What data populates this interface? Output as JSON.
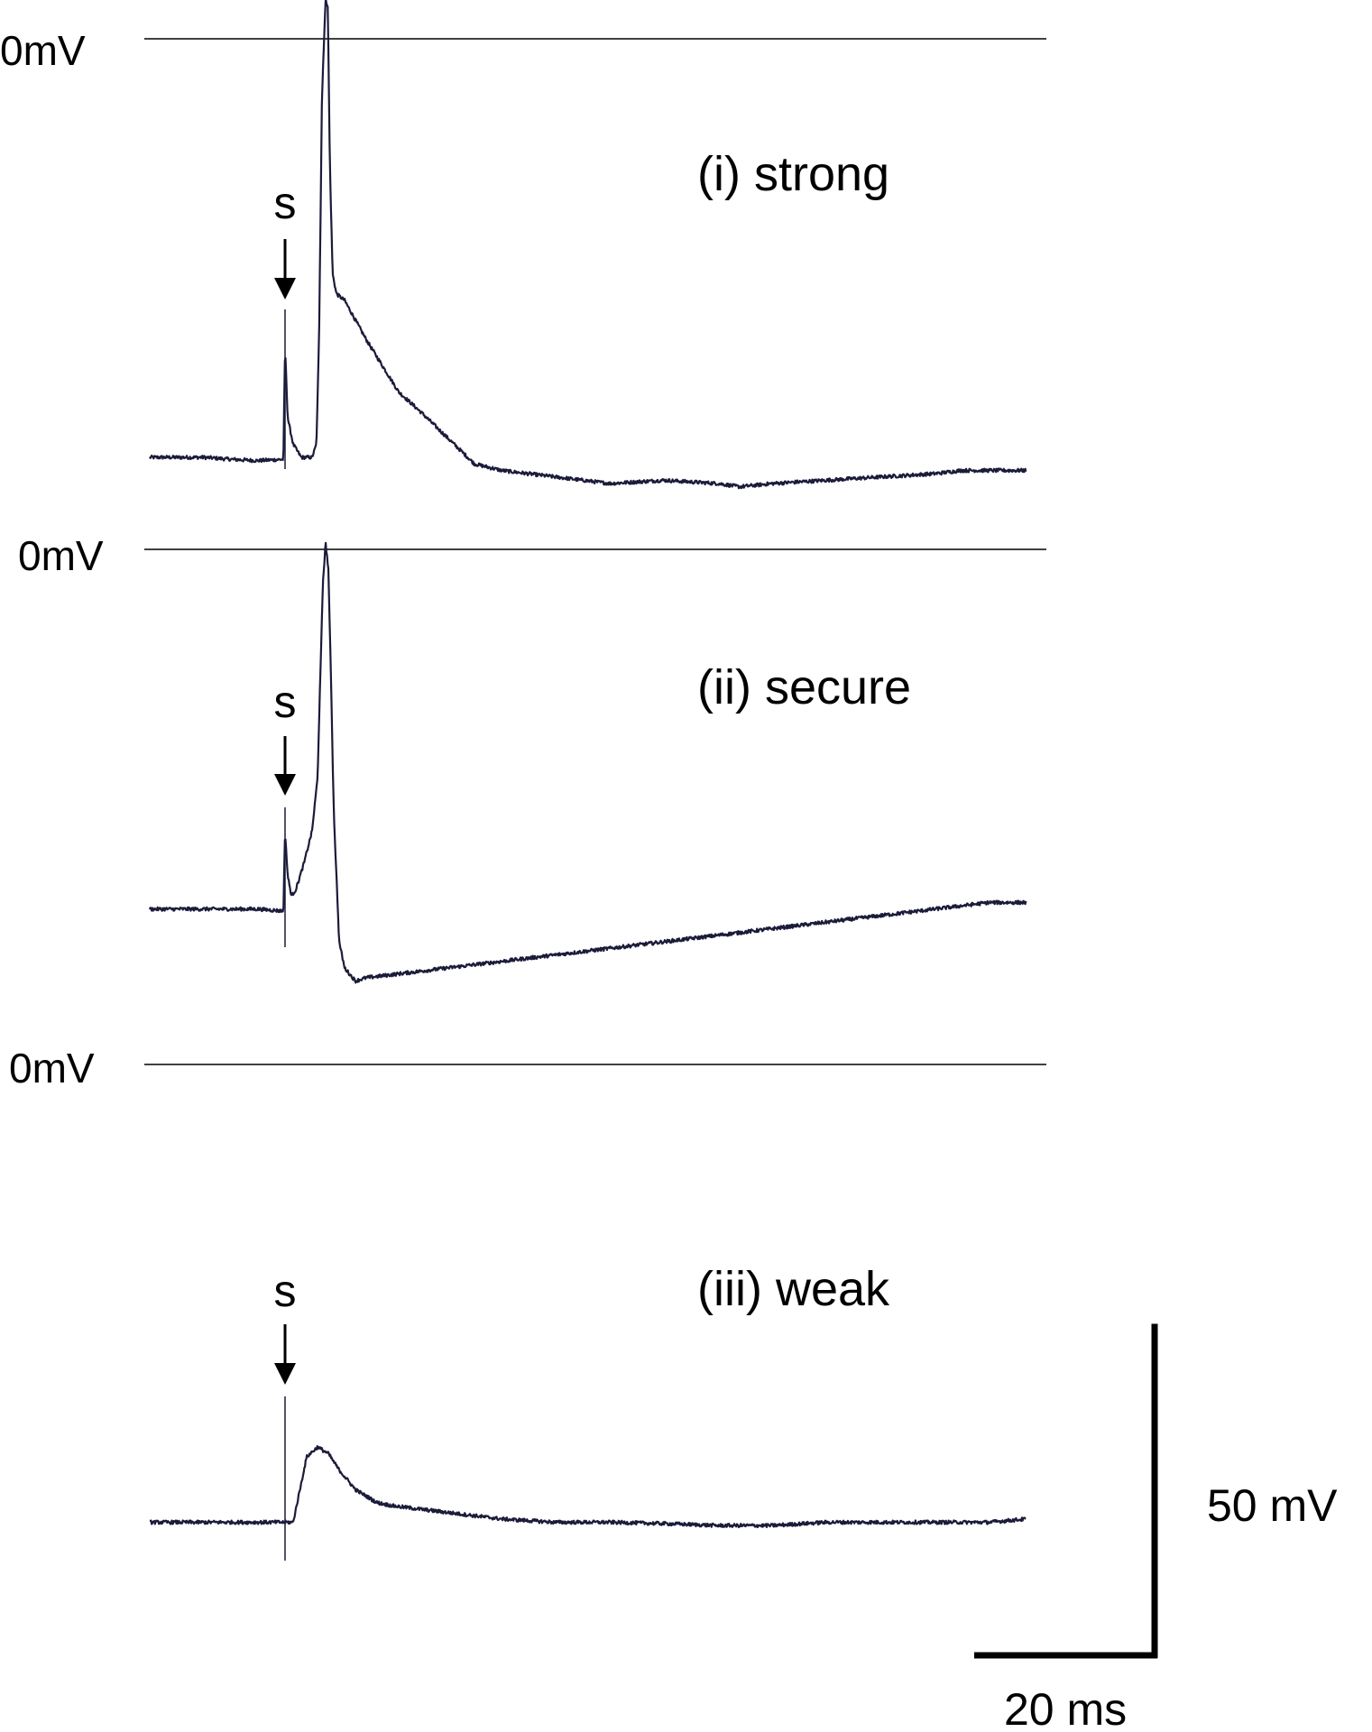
{
  "chart_data": {
    "type": "line",
    "panels": [
      {
        "id": "strong",
        "label": "(i) strong",
        "zero_label": "0mV",
        "stimulus_label": "s",
        "stimulus_time_ms": 0,
        "baseline_mV": -64,
        "points": [
          [
            -25.0,
            -64
          ],
          [
            -20,
            -64
          ],
          [
            -15,
            -64
          ],
          [
            -10,
            -64.3
          ],
          [
            -5,
            -64.5
          ],
          [
            -0.3,
            -64.3
          ],
          [
            0,
            -47
          ],
          [
            0.5,
            -58
          ],
          [
            1.5,
            -62
          ],
          [
            3,
            -64
          ],
          [
            5,
            -64
          ],
          [
            5.8,
            -62
          ],
          [
            6.3,
            -45
          ],
          [
            6.8,
            -10
          ],
          [
            7.2,
            0
          ],
          [
            7.5,
            6
          ],
          [
            7.9,
            5
          ],
          [
            8.3,
            -20
          ],
          [
            8.8,
            -36
          ],
          [
            9.5,
            -39
          ],
          [
            11,
            -40
          ],
          [
            13,
            -43
          ],
          [
            15,
            -46
          ],
          [
            18,
            -50
          ],
          [
            21,
            -54
          ],
          [
            25,
            -57
          ],
          [
            30,
            -61
          ],
          [
            35,
            -65
          ],
          [
            40,
            -66
          ],
          [
            50,
            -67
          ],
          [
            60,
            -68
          ],
          [
            70,
            -67.5
          ],
          [
            80,
            -68
          ],
          [
            84,
            -68.5
          ],
          [
            90,
            -68
          ],
          [
            100,
            -67.5
          ],
          [
            110,
            -67
          ],
          [
            120,
            -66.5
          ],
          [
            125,
            -66
          ],
          [
            135,
            -66
          ],
          [
            137,
            -66
          ]
        ]
      },
      {
        "id": "secure",
        "label": "(ii) secure",
        "zero_label": "0mV",
        "stimulus_label": "s",
        "stimulus_time_ms": 0,
        "baseline_mV": -55,
        "points": [
          [
            -25.0,
            -55
          ],
          [
            -20,
            -55
          ],
          [
            -15,
            -55
          ],
          [
            -10,
            -55
          ],
          [
            -5,
            -55
          ],
          [
            -0.3,
            -55.3
          ],
          [
            0,
            -43
          ],
          [
            0.5,
            -50
          ],
          [
            1.2,
            -53
          ],
          [
            2,
            -52
          ],
          [
            3.5,
            -48
          ],
          [
            5,
            -43
          ],
          [
            6,
            -35
          ],
          [
            6.5,
            -20
          ],
          [
            7,
            -5
          ],
          [
            7.5,
            1
          ],
          [
            8,
            -3
          ],
          [
            8.5,
            -20
          ],
          [
            9,
            -40
          ],
          [
            10,
            -60
          ],
          [
            11,
            -64
          ],
          [
            13,
            -66
          ],
          [
            15,
            -65.5
          ],
          [
            20,
            -65
          ],
          [
            30,
            -64
          ],
          [
            40,
            -63
          ],
          [
            50,
            -62
          ],
          [
            60,
            -61
          ],
          [
            70,
            -60
          ],
          [
            80,
            -59
          ],
          [
            90,
            -58
          ],
          [
            100,
            -57
          ],
          [
            110,
            -56
          ],
          [
            120,
            -55
          ],
          [
            130,
            -54
          ],
          [
            137,
            -54
          ]
        ]
      },
      {
        "id": "weak",
        "label": "(iii) weak",
        "zero_label": "0mV",
        "stimulus_label": "s",
        "stimulus_time_ms": 0,
        "baseline_mV": -70,
        "points": [
          [
            -25.0,
            -70
          ],
          [
            -20,
            -70
          ],
          [
            -15,
            -70
          ],
          [
            -10,
            -70
          ],
          [
            -5,
            -70
          ],
          [
            -0.3,
            -70
          ],
          [
            0,
            -70
          ],
          [
            1.5,
            -70
          ],
          [
            2.5,
            -66
          ],
          [
            4,
            -60
          ],
          [
            6,
            -58.5
          ],
          [
            8,
            -59.5
          ],
          [
            10,
            -62
          ],
          [
            13,
            -65
          ],
          [
            17,
            -67
          ],
          [
            20,
            -67.5
          ],
          [
            30,
            -68.5
          ],
          [
            40,
            -69.5
          ],
          [
            50,
            -70
          ],
          [
            60,
            -70
          ],
          [
            70,
            -70.2
          ],
          [
            80,
            -70.5
          ],
          [
            90,
            -70.5
          ],
          [
            100,
            -70
          ],
          [
            110,
            -70
          ],
          [
            120,
            -70
          ],
          [
            130,
            -70
          ],
          [
            137,
            -69.5
          ]
        ]
      }
    ],
    "scale_bar": {
      "voltage_mV": 50,
      "voltage_label": "50 mV",
      "time_ms": 20,
      "time_label": "20 ms"
    },
    "colors": {
      "trace": "#1b1b3a",
      "reference": "#000000"
    }
  }
}
